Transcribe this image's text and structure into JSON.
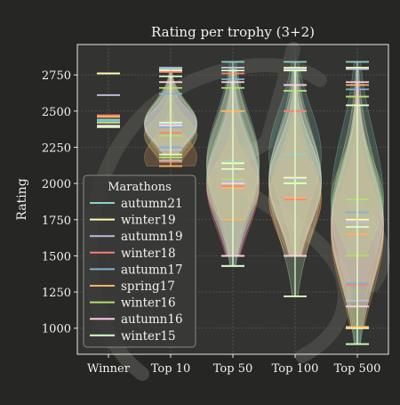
{
  "chart_data": {
    "type": "violin",
    "title": "Rating per trophy (3+2)",
    "xlabel": "",
    "ylabel": "Rating",
    "categories": [
      "Winner",
      "Top 10",
      "Top 50",
      "Top 100",
      "Top 500"
    ],
    "ylim": [
      820,
      2960
    ],
    "yticks": [
      1000,
      1250,
      1500,
      1750,
      2000,
      2250,
      2500,
      2750
    ],
    "grid": true,
    "legend": {
      "title": "Marathons",
      "position": "lower-left"
    },
    "series": [
      {
        "name": "autumn21",
        "color": "#8dd3c7",
        "winner": 2440,
        "top10": {
          "min": 2160,
          "max": 2790,
          "median": 2400
        },
        "top50": {
          "min": 1430,
          "max": 2840,
          "median": 2150
        },
        "top100": {
          "min": 1500,
          "max": 2840,
          "median": 2200
        },
        "top500": {
          "min": 890,
          "max": 2840,
          "median": 1890
        }
      },
      {
        "name": "winter19",
        "color": "#ffffb3",
        "winner": 2760,
        "top10": {
          "min": 2180,
          "max": 2780,
          "median": 2420
        },
        "top50": {
          "min": 1500,
          "max": 2800,
          "median": 2140
        },
        "top100": {
          "min": 1500,
          "max": 2800,
          "median": 2040
        },
        "top500": {
          "min": 1000,
          "max": 2800,
          "median": 1750
        }
      },
      {
        "name": "autumn19",
        "color": "#bebada",
        "winner": 2610,
        "top10": {
          "min": 2230,
          "max": 2800,
          "median": 2410
        },
        "top50": {
          "min": 1500,
          "max": 2800,
          "median": 2020
        },
        "top100": {
          "min": 1500,
          "max": 2790,
          "median": 2030
        },
        "top500": {
          "min": 1190,
          "max": 2790,
          "median": 1730
        }
      },
      {
        "name": "winter18",
        "color": "#fb8072",
        "winner": 2470,
        "top10": {
          "min": 2150,
          "max": 2770,
          "median": 2350
        },
        "top50": {
          "min": 1500,
          "max": 2760,
          "median": 1980
        },
        "top100": {
          "min": 1500,
          "max": 2500,
          "median": 1890
        },
        "top500": {
          "min": 1300,
          "max": 2600,
          "median": 1650
        }
      },
      {
        "name": "autumn17",
        "color": "#80b1d3",
        "winner": 2430,
        "top10": {
          "min": 2250,
          "max": 2620,
          "median": 2390
        },
        "top50": {
          "min": 1500,
          "max": 2720,
          "median": 2030
        },
        "top100": {
          "min": 1500,
          "max": 2640,
          "median": 2010
        },
        "top500": {
          "min": 1310,
          "max": 2650,
          "median": 1800
        }
      },
      {
        "name": "spring17",
        "color": "#fdb462",
        "winner": 2460,
        "top10": {
          "min": 2120,
          "max": 2700,
          "median": 2180
        },
        "top50": {
          "min": 1750,
          "max": 2500,
          "median": 1970
        },
        "top100": {
          "min": 1500,
          "max": 2680,
          "median": 1900
        },
        "top500": {
          "min": 1010,
          "max": 2680,
          "median": 1650
        }
      },
      {
        "name": "winter16",
        "color": "#b3de69",
        "winner": 2420,
        "top10": {
          "min": 2180,
          "max": 2660,
          "median": 2330
        },
        "top50": {
          "min": 1500,
          "max": 2660,
          "median": 2030
        },
        "top100": {
          "min": 1500,
          "max": 2640,
          "median": 2010
        },
        "top500": {
          "min": 1500,
          "max": 2600,
          "median": 1890
        }
      },
      {
        "name": "autumn16",
        "color": "#fccde5",
        "winner": 2400,
        "top10": {
          "min": 2200,
          "max": 2700,
          "median": 2400
        },
        "top50": {
          "min": 1500,
          "max": 2700,
          "median": 2000
        },
        "top100": {
          "min": 1500,
          "max": 2680,
          "median": 2000
        },
        "top500": {
          "min": 1150,
          "max": 2700,
          "median": 1700
        }
      },
      {
        "name": "winter15",
        "color": "#d9ffc7",
        "winner": 2390,
        "top10": {
          "min": 2200,
          "max": 2740,
          "median": 2420
        },
        "top50": {
          "min": 1430,
          "max": 2780,
          "median": 2100
        },
        "top100": {
          "min": 1220,
          "max": 2780,
          "median": 2000
        },
        "top500": {
          "min": 890,
          "max": 2540,
          "median": 1700
        }
      }
    ]
  }
}
